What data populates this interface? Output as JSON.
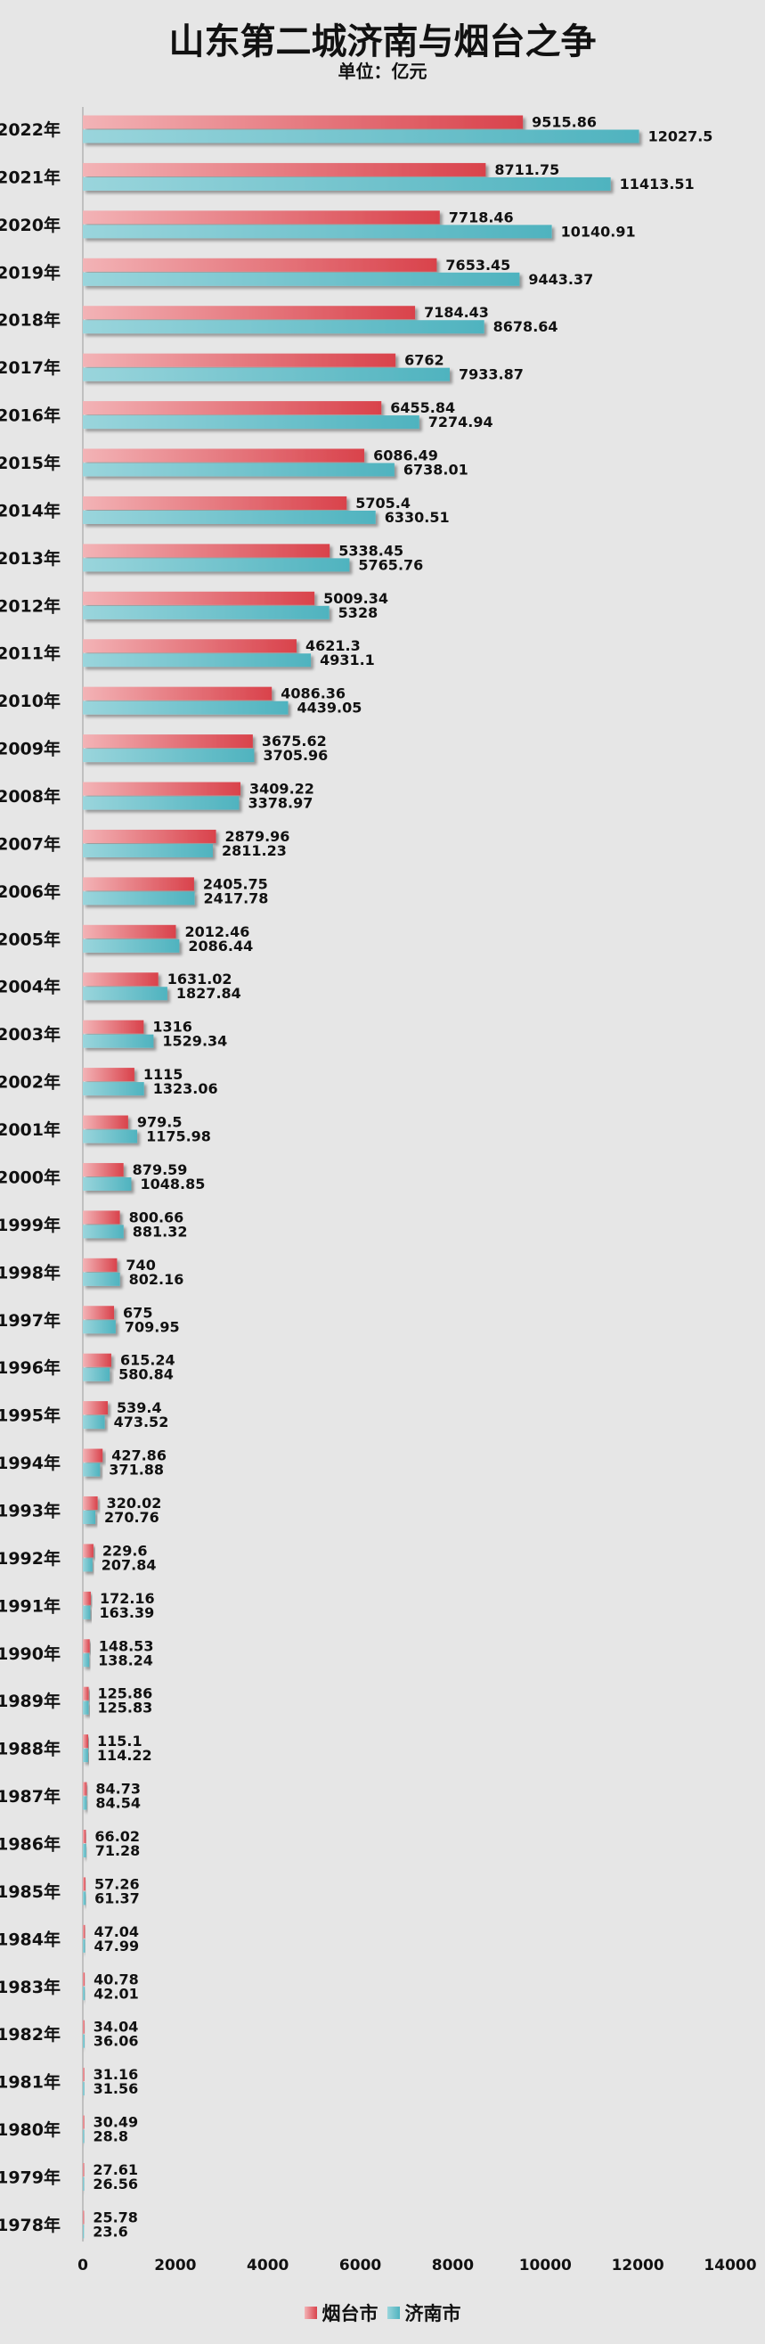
{
  "chart_data": {
    "type": "bar",
    "orientation": "horizontal",
    "title": "山东第二城济南与烟台之争",
    "subtitle": "单位：亿元",
    "categories": [
      "2022年",
      "2021年",
      "2020年",
      "2019年",
      "2018年",
      "2017年",
      "2016年",
      "2015年",
      "2014年",
      "2013年",
      "2012年",
      "2011年",
      "2010年",
      "2009年",
      "2008年",
      "2007年",
      "2006年",
      "2005年",
      "2004年",
      "2003年",
      "2002年",
      "2001年",
      "2000年",
      "1999年",
      "1998年",
      "1997年",
      "1996年",
      "1995年",
      "1994年",
      "1993年",
      "1992年",
      "1991年",
      "1990年",
      "1989年",
      "1988年",
      "1987年",
      "1986年",
      "1985年",
      "1984年",
      "1983年",
      "1982年",
      "1981年",
      "1980年",
      "1979年",
      "1978年"
    ],
    "series": [
      {
        "name": "烟台市",
        "color": "#d9424b",
        "values": [
          9515.86,
          8711.75,
          7718.46,
          7653.45,
          7184.43,
          6762,
          6455.84,
          6086.49,
          5705.4,
          5338.45,
          5009.34,
          4621.3,
          4086.36,
          3675.62,
          3409.22,
          2879.96,
          2405.75,
          2012.46,
          1631.02,
          1316,
          1115,
          979.5,
          879.59,
          800.66,
          740,
          675,
          615.24,
          539.4,
          427.86,
          320.02,
          229.6,
          172.16,
          148.53,
          125.86,
          115.1,
          84.73,
          66.02,
          57.26,
          47.04,
          40.78,
          34.04,
          31.16,
          30.49,
          27.61,
          25.78
        ],
        "labels": [
          "9515.86",
          "8711.75",
          "7718.46",
          "7653.45",
          "7184.43",
          "6762",
          "6455.84",
          "6086.49",
          "5705.4",
          "5338.45",
          "5009.34",
          "4621.3",
          "4086.36",
          "3675.62",
          "3409.22",
          "2879.96",
          "2405.75",
          "2012.46",
          "1631.02",
          "1316",
          "1115",
          "979.5",
          "879.59",
          "800.66",
          "740",
          "675",
          "615.24",
          "539.4",
          "427.86",
          "320.02",
          "229.6",
          "172.16",
          "148.53",
          "125.86",
          "115.1",
          "84.73",
          "66.02",
          "57.26",
          "47.04",
          "40.78",
          "34.04",
          "31.16",
          "30.49",
          "27.61",
          "25.78"
        ]
      },
      {
        "name": "济南市",
        "color": "#4fb3bf",
        "values": [
          12027.5,
          11413.51,
          10140.91,
          9443.37,
          8678.64,
          7933.87,
          7274.94,
          6738.01,
          6330.51,
          5765.76,
          5328,
          4931.1,
          4439.05,
          3705.96,
          3378.97,
          2811.23,
          2417.78,
          2086.44,
          1827.84,
          1529.34,
          1323.06,
          1175.98,
          1048.85,
          881.32,
          802.16,
          709.95,
          580.84,
          473.52,
          371.88,
          270.76,
          207.84,
          163.39,
          138.24,
          125.83,
          114.22,
          84.54,
          71.28,
          61.37,
          47.99,
          42.01,
          36.06,
          31.56,
          28.8,
          26.56,
          23.6
        ],
        "labels": [
          "12027.5",
          "11413.51",
          "10140.91",
          "9443.37",
          "8678.64",
          "7933.87",
          "7274.94",
          "6738.01",
          "6330.51",
          "5765.76",
          "5328",
          "4931.1",
          "4439.05",
          "3705.96",
          "3378.97",
          "2811.23",
          "2417.78",
          "2086.44",
          "1827.84",
          "1529.34",
          "1323.06",
          "1175.98",
          "1048.85",
          "881.32",
          "802.16",
          "709.95",
          "580.84",
          "473.52",
          "371.88",
          "270.76",
          "207.84",
          "163.39",
          "138.24",
          "125.83",
          "114.22",
          "84.54",
          "71.28",
          "61.37",
          "47.99",
          "42.01",
          "36.06",
          "31.56",
          "28.8",
          "26.56",
          "23.6"
        ]
      }
    ],
    "xlim": [
      0,
      14000
    ],
    "xticks": [
      0,
      2000,
      4000,
      6000,
      8000,
      10000,
      12000,
      14000
    ],
    "xtick_labels": [
      "0",
      "2000",
      "4000",
      "6000",
      "8000",
      "10000",
      "12000",
      "14000"
    ],
    "grid": false,
    "legend": "bottom"
  }
}
